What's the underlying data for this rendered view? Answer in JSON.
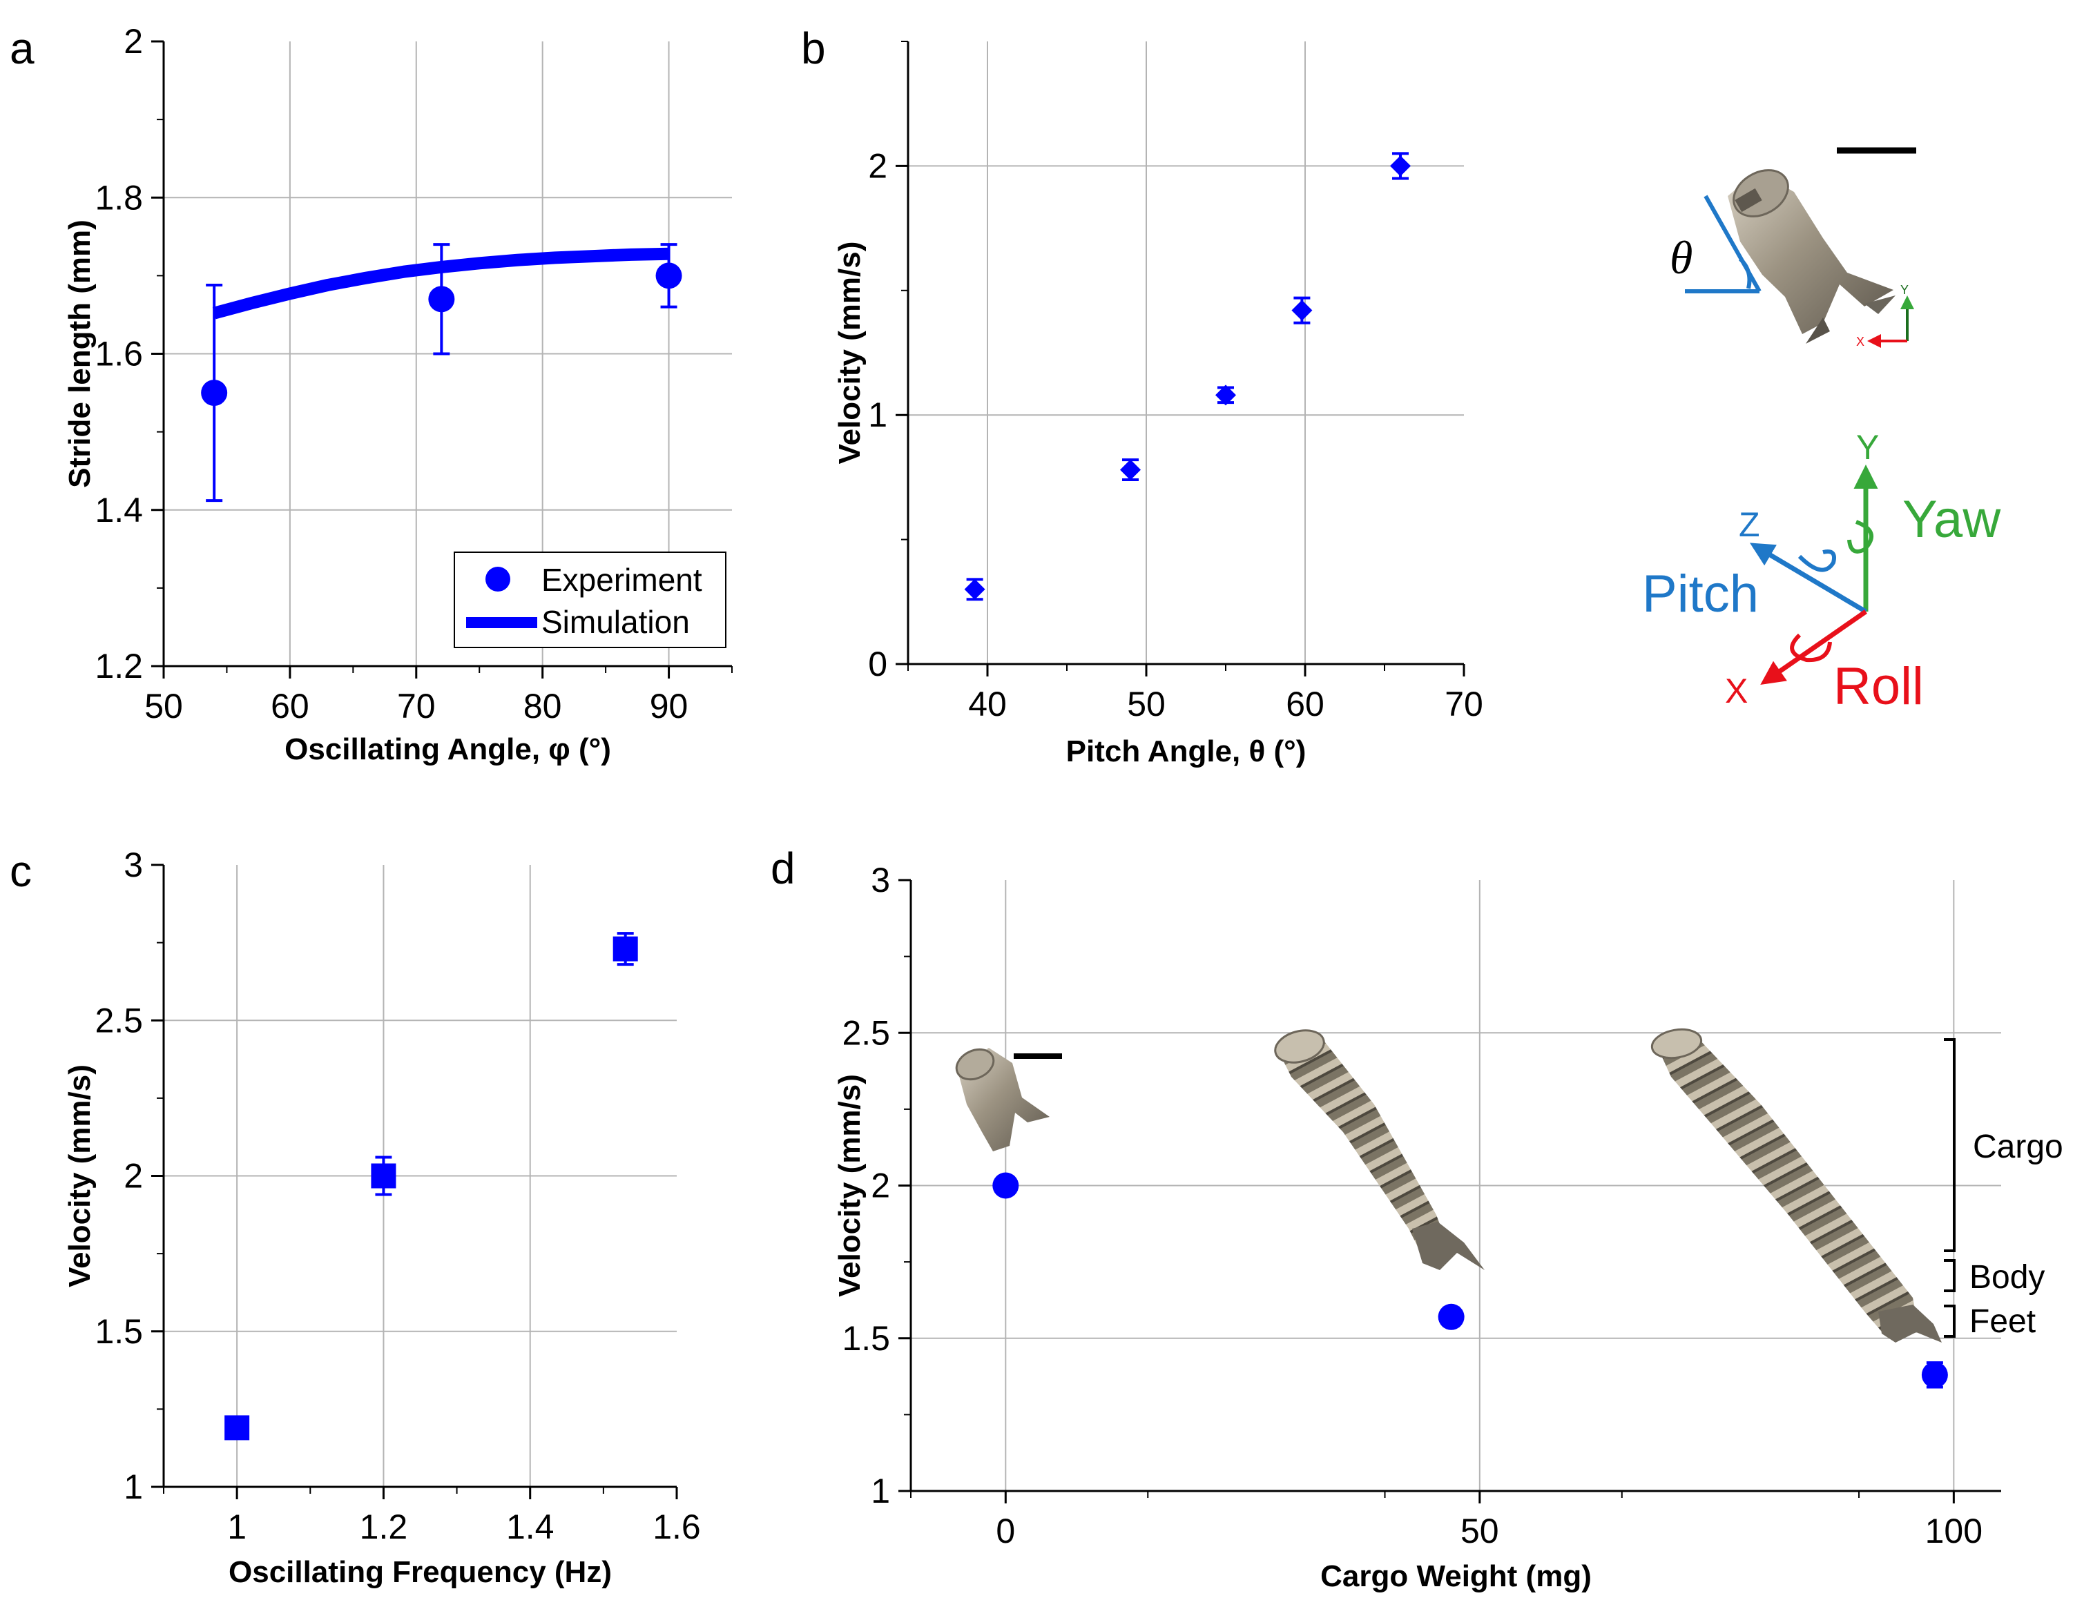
{
  "colors": {
    "marker": "#0000ff",
    "grid": "#b4b4b4",
    "axis": "#000000",
    "axis_x_color": "#e8101a",
    "axis_y_color": "#37a83a",
    "axis_z_color": "#1f78c8",
    "angle_color": "#1f78c8"
  },
  "chart_data": [
    {
      "id": "a",
      "panel_label": "a",
      "type": "scatter",
      "xlabel": "Oscillating Angle, φ (°)",
      "ylabel": "Stride length (mm)",
      "xlim": [
        50,
        95
      ],
      "ylim": [
        1.2,
        2.0
      ],
      "xticks": [
        50,
        60,
        70,
        80,
        90
      ],
      "yticks": [
        1.2,
        1.4,
        1.6,
        1.8,
        2.0
      ],
      "ytick_labels": [
        "1.2",
        "1.4",
        "1.6",
        "1.8",
        "2"
      ],
      "xgrid": [
        60,
        70,
        80,
        90
      ],
      "ygrid": [
        1.4,
        1.6,
        1.8
      ],
      "marker": "circle",
      "series": [
        {
          "name": "Experiment",
          "kind": "points",
          "x": [
            54,
            72,
            90
          ],
          "y": [
            1.55,
            1.67,
            1.7
          ],
          "yerr": [
            0.138,
            0.07,
            0.04
          ]
        },
        {
          "name": "Simulation",
          "kind": "line",
          "x": [
            54,
            57,
            60,
            63,
            66,
            69,
            72,
            75,
            78,
            81,
            84,
            87,
            90
          ],
          "y": [
            1.652,
            1.665,
            1.677,
            1.688,
            1.697,
            1.705,
            1.711,
            1.716,
            1.72,
            1.723,
            1.725,
            1.727,
            1.728
          ]
        }
      ],
      "legend": [
        "Experiment",
        "Simulation"
      ],
      "legend_position": "bottom-right"
    },
    {
      "id": "b",
      "panel_label": "b",
      "type": "scatter",
      "xlabel": "Pitch Angle, θ (°)",
      "ylabel": "Velocity (mm/s)",
      "xlim": [
        35,
        70
      ],
      "ylim": [
        0,
        2.5
      ],
      "xticks": [
        40,
        50,
        60,
        70
      ],
      "yticks": [
        0,
        1,
        2
      ],
      "ytick_labels": [
        "0",
        "1",
        "2"
      ],
      "xgrid": [
        40,
        50,
        60
      ],
      "ygrid": [
        1,
        2
      ],
      "marker": "diamond",
      "series": [
        {
          "name": "Velocity",
          "kind": "points",
          "x": [
            39.2,
            49,
            55,
            59.8,
            66
          ],
          "y": [
            0.3,
            0.78,
            1.08,
            1.42,
            2.0
          ],
          "yerr": [
            0.04,
            0.04,
            0.03,
            0.05,
            0.05
          ]
        }
      ],
      "inset": {
        "angle_symbol": "θ",
        "tiny_axis_x": "X",
        "tiny_axis_y": "Y",
        "axis_x": "X",
        "axis_y": "Y",
        "axis_z": "Z",
        "label_yaw": "Yaw",
        "label_pitch": "Pitch",
        "label_roll": "Roll"
      }
    },
    {
      "id": "c",
      "panel_label": "c",
      "type": "scatter",
      "xlabel": "Oscillating Frequency (Hz)",
      "ylabel": "Velocity (mm/s)",
      "xlim": [
        0.9,
        1.6
      ],
      "ylim": [
        1,
        3
      ],
      "xticks": [
        1,
        1.2,
        1.4,
        1.6
      ],
      "xtick_labels": [
        "1",
        "1.2",
        "1.4",
        "1.6"
      ],
      "yticks": [
        1,
        1.5,
        2,
        2.5,
        3
      ],
      "ytick_labels": [
        "1",
        "1.5",
        "2",
        "2.5",
        "3"
      ],
      "xgrid": [
        1,
        1.2,
        1.4
      ],
      "ygrid": [
        1.5,
        2,
        2.5
      ],
      "marker": "square",
      "series": [
        {
          "name": "Velocity",
          "kind": "points",
          "x": [
            1.0,
            1.2,
            1.53
          ],
          "y": [
            1.19,
            2.0,
            2.73
          ],
          "yerr": [
            0.03,
            0.06,
            0.05
          ]
        }
      ]
    },
    {
      "id": "d",
      "panel_label": "d",
      "type": "scatter",
      "xlabel": "Cargo Weight (mg)",
      "ylabel": "Velocity (mm/s)",
      "xlim": [
        -10,
        105
      ],
      "ylim": [
        1,
        3
      ],
      "xticks": [
        0,
        50,
        100
      ],
      "yticks": [
        1,
        1.5,
        2,
        2.5,
        3
      ],
      "ytick_labels": [
        "1",
        "1.5",
        "2",
        "2.5",
        "3"
      ],
      "xgrid": [
        0,
        50,
        100
      ],
      "ygrid": [
        1.5,
        2,
        2.5
      ],
      "marker": "circle",
      "series": [
        {
          "name": "Velocity",
          "kind": "points",
          "x": [
            0,
            47,
            98
          ],
          "y": [
            2.0,
            1.57,
            1.38
          ],
          "yerr": [
            0.02,
            0.03,
            0.04
          ]
        }
      ],
      "annotations": [
        "Cargo",
        "Body",
        "Feet"
      ]
    }
  ]
}
